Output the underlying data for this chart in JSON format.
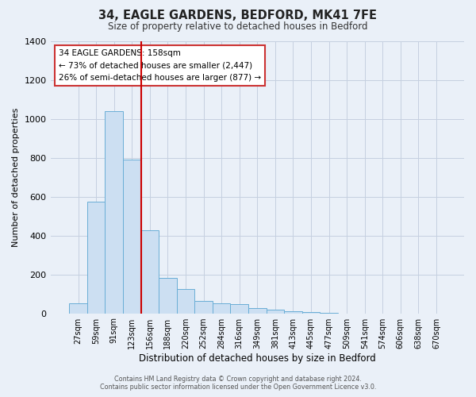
{
  "title": "34, EAGLE GARDENS, BEDFORD, MK41 7FE",
  "subtitle": "Size of property relative to detached houses in Bedford",
  "xlabel": "Distribution of detached houses by size in Bedford",
  "ylabel": "Number of detached properties",
  "bar_labels": [
    "27sqm",
    "59sqm",
    "91sqm",
    "123sqm",
    "156sqm",
    "188sqm",
    "220sqm",
    "252sqm",
    "284sqm",
    "316sqm",
    "349sqm",
    "381sqm",
    "413sqm",
    "445sqm",
    "477sqm",
    "509sqm",
    "541sqm",
    "574sqm",
    "606sqm",
    "638sqm",
    "670sqm"
  ],
  "bar_values": [
    50,
    575,
    1040,
    790,
    425,
    180,
    125,
    65,
    50,
    48,
    25,
    20,
    10,
    5,
    2,
    0,
    0,
    0,
    0,
    0,
    0
  ],
  "bar_color": "#ccdff2",
  "bar_edge_color": "#6aaed6",
  "vline_color": "#cc0000",
  "annotation_line1": "34 EAGLE GARDENS: 158sqm",
  "annotation_line2": "← 73% of detached houses are smaller (2,447)",
  "annotation_line3": "26% of semi-detached houses are larger (877) →",
  "ylim": [
    0,
    1400
  ],
  "yticks": [
    0,
    200,
    400,
    600,
    800,
    1000,
    1200,
    1400
  ],
  "footer1": "Contains HM Land Registry data © Crown copyright and database right 2024.",
  "footer2": "Contains public sector information licensed under the Open Government Licence v3.0.",
  "bg_color": "#eaf0f8",
  "plot_bg_color": "#eaf0f8",
  "grid_color": "#c5d0e0"
}
